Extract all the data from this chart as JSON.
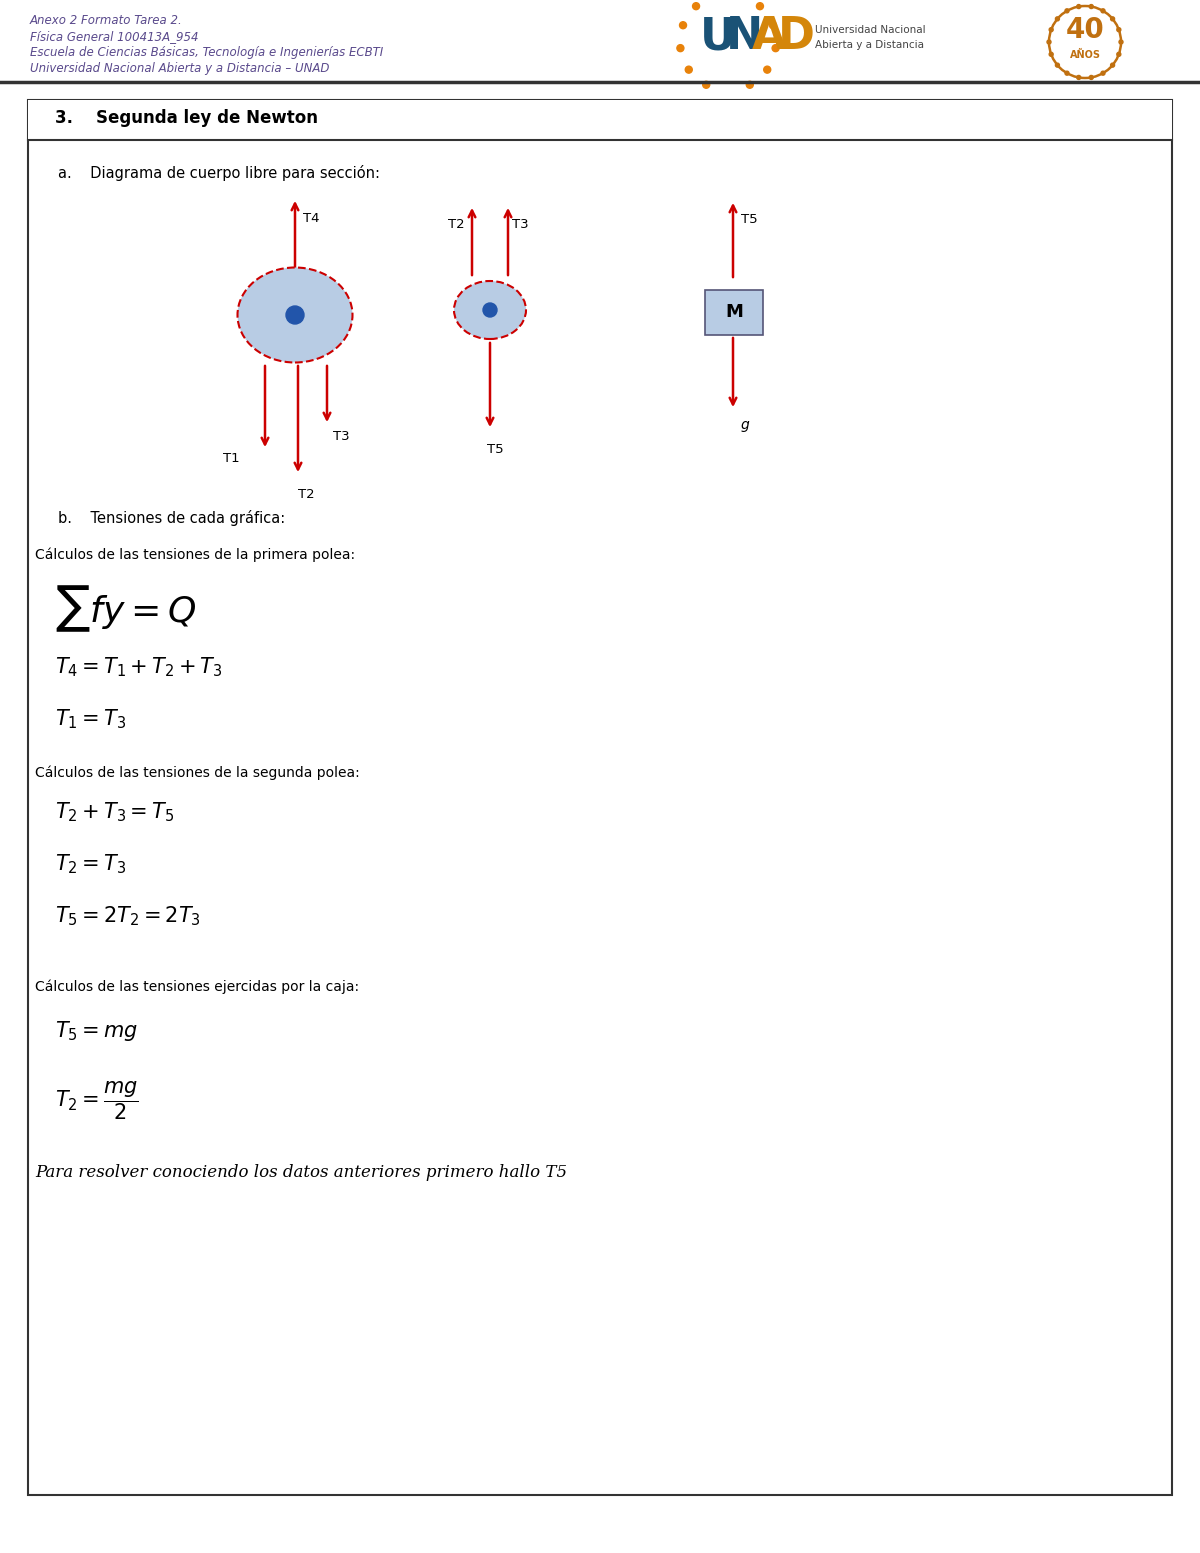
{
  "header_lines": [
    "Anexo 2 Formato Tarea 2.",
    "Física General 100413A_954",
    "Escuela de Ciencias Básicas, Tecnología e Ingenierías ECBTI",
    "Universidad Nacional Abierta y a Distancia – UNAD"
  ],
  "section_title": "3.    Segunda ley de Newton",
  "sub_a": "a.    Diagrama de cuerpo libre para sección:",
  "sub_b": "b.    Tensiones de cada gráfica:",
  "calc1_label": "Cálculos de las tensiones de la primera polea:",
  "calc2_label": "Cálculos de las tensiones de la segunda polea:",
  "calc3_label": "Cálculos de las tensiones ejercidas por la caja:",
  "final_text": "Para resolver conociendo los datos anteriores primero hallo T5",
  "bg_color": "#ffffff",
  "arrow_color": "#cc0000",
  "pulley_fill": "#b8cce4",
  "pulley_edge": "#cc0000",
  "dot_color": "#2255aa",
  "box_fill": "#b8cce4",
  "box_edge": "#555577",
  "header_text_color": "#5a4a8c",
  "unad_u_color": "#1a5276",
  "unad_n_color": "#1a5276",
  "unad_a_color": "#d4860a",
  "unad_d_color": "#d4860a",
  "orange_color": "#e8820a",
  "anos_color": "#c07010"
}
